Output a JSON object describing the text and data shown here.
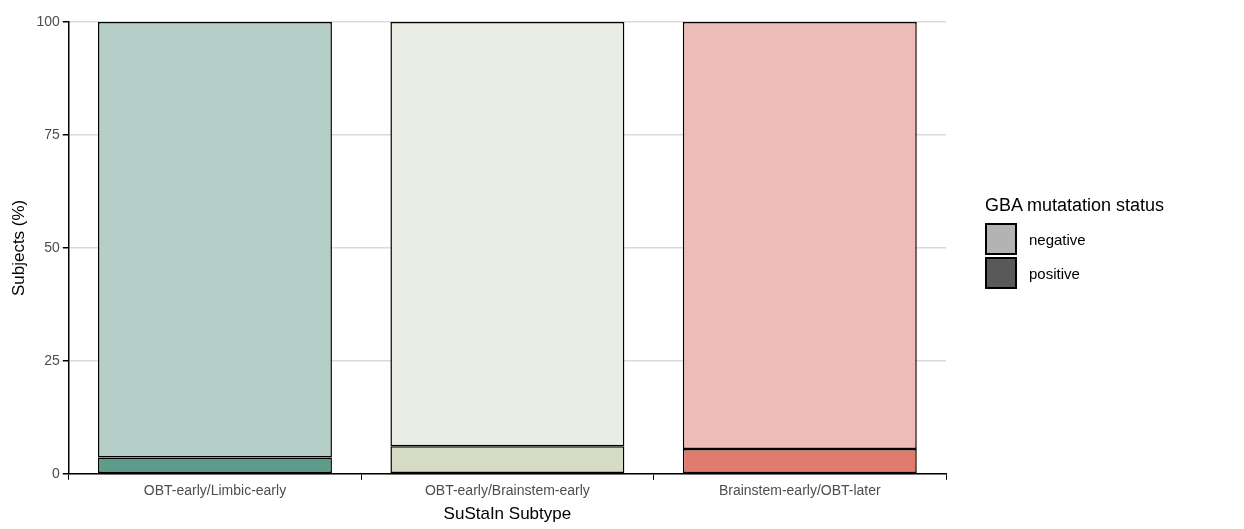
{
  "chart_data": {
    "type": "bar",
    "stacked": true,
    "xlabel": "SuStaIn Subtype",
    "ylabel": "Subjects (%)",
    "legend_title": "GBA mutatation status",
    "categories": [
      "OBT-early/Limbic-early",
      "OBT-early/Brainstem-early",
      "Brainstem-early/OBT-later"
    ],
    "series": [
      {
        "name": "positive",
        "color": "#595959",
        "colors": [
          "#5e9b8a",
          "#d6dcc4",
          "#e07b6e"
        ],
        "values": [
          3.6,
          6.1,
          5.5
        ]
      },
      {
        "name": "negative",
        "color": "#b3b3b3",
        "colors": [
          "#b5cfc8",
          "#e9ede3",
          "#eebcb8"
        ],
        "values": [
          96.4,
          93.9,
          94.5
        ]
      }
    ],
    "ylim": [
      0,
      100
    ],
    "yticks": [
      0,
      25,
      50,
      75,
      100
    ],
    "grid": "y",
    "legend": "right"
  }
}
